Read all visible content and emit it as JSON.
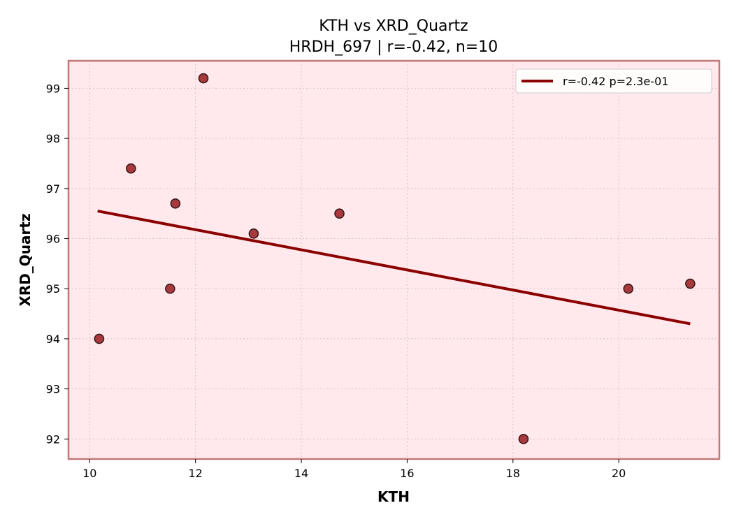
{
  "chart_data": {
    "type": "scatter",
    "title": "KTH vs XRD_Quartz",
    "subtitle": "HRDH_697 | r=-0.42, n=10",
    "xlabel": "KTH",
    "ylabel": "XRD_Quartz",
    "xlim": [
      9.6,
      21.9
    ],
    "ylim": [
      91.6,
      99.55
    ],
    "xticks": [
      10,
      12,
      14,
      16,
      18,
      20
    ],
    "yticks": [
      92,
      93,
      94,
      95,
      96,
      97,
      98,
      99
    ],
    "grid": true,
    "legend_position": "top-right",
    "points": [
      {
        "x": 10.18,
        "y": 94.0
      },
      {
        "x": 10.78,
        "y": 97.4
      },
      {
        "x": 11.52,
        "y": 95.0
      },
      {
        "x": 11.62,
        "y": 96.7
      },
      {
        "x": 12.15,
        "y": 99.2
      },
      {
        "x": 13.1,
        "y": 96.1
      },
      {
        "x": 14.72,
        "y": 96.5
      },
      {
        "x": 18.2,
        "y": 92.0
      },
      {
        "x": 20.18,
        "y": 95.0
      },
      {
        "x": 21.35,
        "y": 95.1
      }
    ],
    "fit_line": {
      "label": "r=-0.42  p=2.3e-01",
      "x": [
        10.15,
        21.35
      ],
      "y": [
        96.55,
        94.3
      ]
    },
    "colors": {
      "plot_background": "#ffe9ec",
      "frame": "#c27878",
      "point_fill": "#a83a3e",
      "point_edge": "#3a1a1a",
      "fit_line": "#8b0000",
      "grid": "#d9c3c6"
    }
  }
}
